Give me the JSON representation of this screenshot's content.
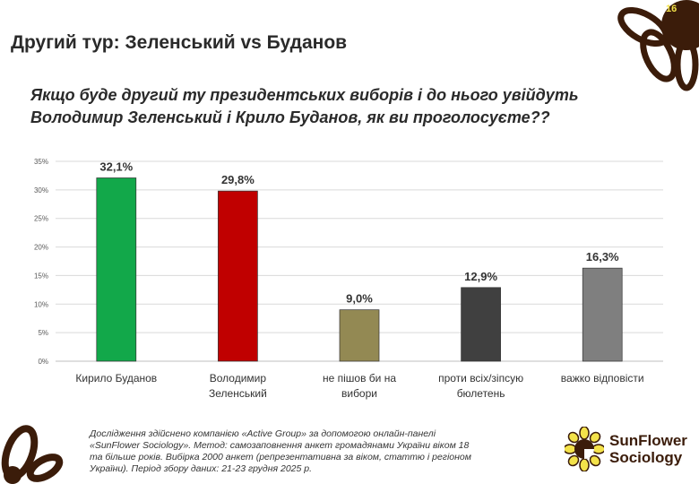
{
  "page_number": "16",
  "title": "Другий тур: Зеленський vs Буданов",
  "question": [
    "Якщо буде другий ту президентських виборів і до нього увійдуть",
    "Володимир Зеленський і Крило Буданов, як ви проголосуєте??"
  ],
  "footnote": "Дослідження здійснено компанією «Active Group» за допомогою онлайн-панелі «SunFlower Sociology». Метод: самозаповнення анкет громадянами України віком 18 та більше років. Вибірка 2000 анкет (репрезентативна за віком, статтю і регіоном України). Період збору даних: 21-23 грудня 2025 р.",
  "logo": {
    "line1": "SunFlower",
    "line2": "Sociology"
  },
  "colors": {
    "brand_brown": "#3b1c0a",
    "accent_yellow": "#f3e24a"
  },
  "chart_data": {
    "type": "bar",
    "categories": [
      [
        "Кирило Буданов"
      ],
      [
        "Володимир",
        "Зеленський"
      ],
      [
        "не пішов би на",
        "вибори"
      ],
      [
        "проти всіх/зіпсую",
        "бюлетень"
      ],
      [
        "важко відповісти"
      ]
    ],
    "values": [
      32.1,
      29.8,
      9.0,
      12.9,
      16.3
    ],
    "data_labels": [
      "32,1%",
      "29,8%",
      "9,0%",
      "12,9%",
      "16,3%"
    ],
    "colors": [
      "#12a84a",
      "#c00000",
      "#938953",
      "#404040",
      "#7f7f7f"
    ],
    "yticks": [
      "0%",
      "5%",
      "10%",
      "15%",
      "20%",
      "25%",
      "30%",
      "35%"
    ],
    "ylim": [
      0,
      35
    ],
    "grid": true,
    "legend": "none"
  }
}
